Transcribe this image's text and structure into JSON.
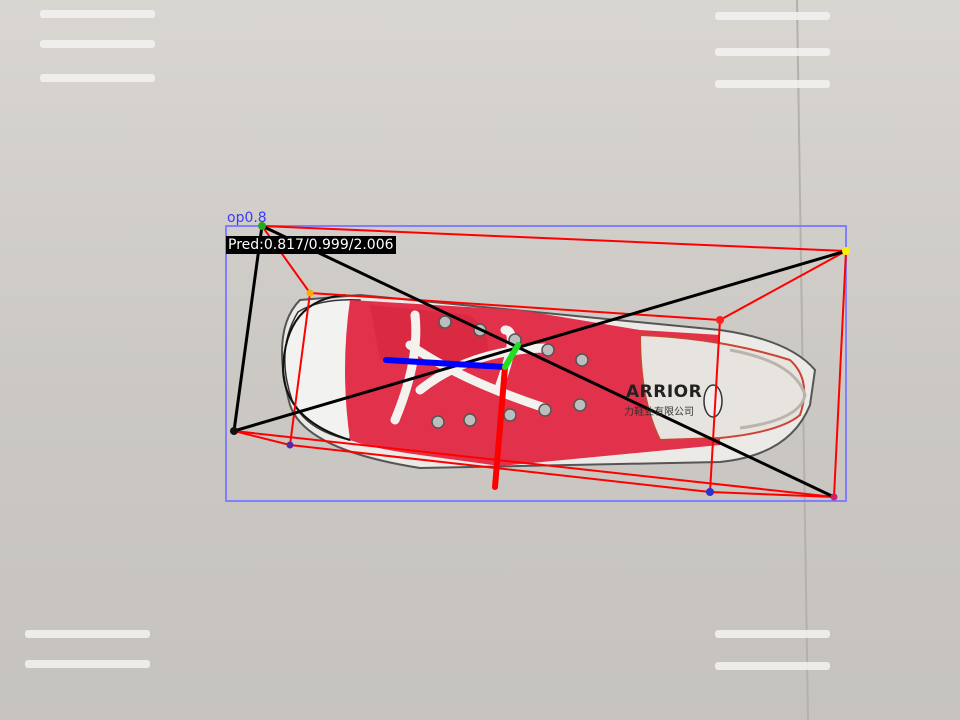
{
  "annotations": {
    "class_label": "op0.8",
    "prediction_label": "Pred:0.817/0.999/2.006"
  },
  "shoe_print": {
    "brand": "ARRIOR",
    "subtext": "力鞋业有限公司"
  },
  "colors": {
    "bbox": "#8080ff",
    "cuboid_edges": "#ff0000",
    "diagonals": "#000000",
    "axis_x": "#0000ff",
    "axis_y": "#00dd00",
    "axis_z": "#ff0000",
    "shoe": "#e8344a",
    "floor": "#cfccc8"
  }
}
